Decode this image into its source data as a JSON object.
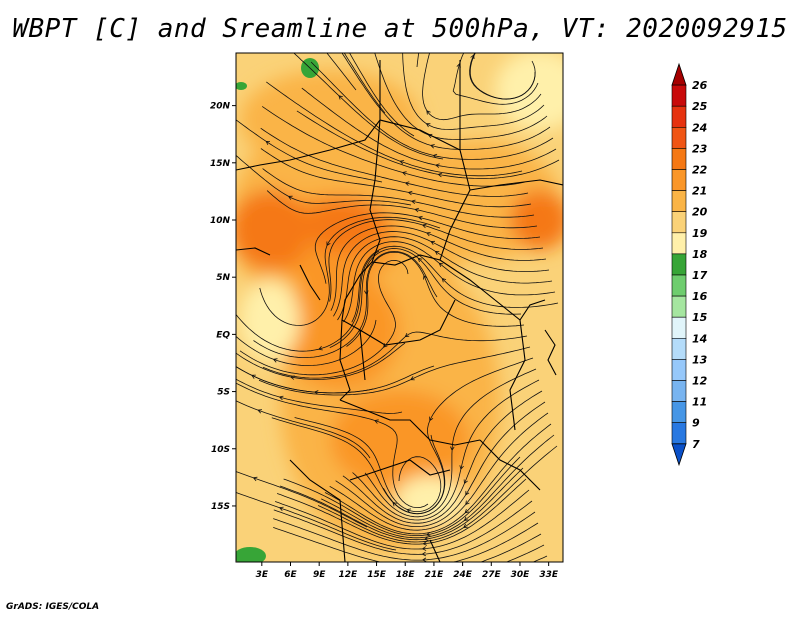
{
  "title": "WBPT [C] and Sreamline at 500hPa, VT: 2020092915",
  "credit": "GrADS: IGES/COLA",
  "chart_data": {
    "type": "heatmap",
    "title": "WBPT [C] and Sreamline at 500hPa, VT: 2020092915",
    "variable": "Wet-bulb potential temperature",
    "units": "C",
    "level": "500hPa",
    "valid_time": "2020092915",
    "overlay": "streamlines",
    "x_axis": {
      "labels": [
        "3E",
        "6E",
        "9E",
        "12E",
        "15E",
        "18E",
        "21E",
        "24E",
        "27E",
        "30E",
        "33E"
      ],
      "values": [
        3,
        6,
        9,
        12,
        15,
        18,
        21,
        24,
        27,
        30,
        33
      ],
      "range": [
        0.3,
        34.5
      ]
    },
    "y_axis": {
      "labels": [
        "20N",
        "15N",
        "10N",
        "5N",
        "EQ",
        "5S",
        "10S",
        "15S"
      ],
      "values": [
        20,
        15,
        10,
        5,
        0,
        -5,
        -10,
        -15
      ],
      "range": [
        -19.9,
        24.6
      ]
    },
    "colorbar": {
      "labels": [
        "26",
        "25",
        "24",
        "23",
        "22",
        "21",
        "20",
        "19",
        "18",
        "17",
        "16",
        "15",
        "14",
        "13",
        "12",
        "11",
        "9",
        "7"
      ],
      "colors": [
        "#a50000",
        "#c80a0a",
        "#e6320f",
        "#f05514",
        "#f57814",
        "#fa9628",
        "#fab446",
        "#fad278",
        "#fff0aa",
        "#37a537",
        "#6ecd6e",
        "#a5e6a0",
        "#e1f5fa",
        "#b4dcfa",
        "#96c8fa",
        "#78b4f0",
        "#4696e6",
        "#2878e1",
        "#0a50c8"
      ]
    },
    "features": [
      {
        "name": "warm-core-west-africa",
        "lon": 8,
        "lat": 9,
        "value": 23
      },
      {
        "name": "warm-core-east",
        "lon": 33,
        "lat": 11,
        "value": 23
      },
      {
        "name": "cool-patch-north",
        "lon": 7,
        "lat": 23,
        "value": 18
      },
      {
        "name": "cool-patch-southwest",
        "lon": 2,
        "lat": -19,
        "value": 18
      }
    ]
  }
}
